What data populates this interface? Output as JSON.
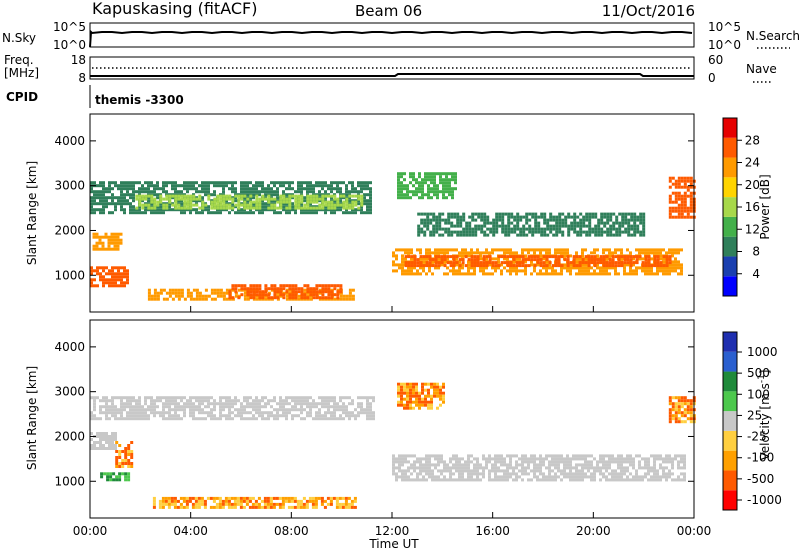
{
  "header": {
    "station": "Kapuskasing (fitACF)",
    "beam": "Beam 06",
    "date": "11/Oct/2016"
  },
  "colors": {
    "power": [
      "#0000ff",
      "#1a3fb0",
      "#2f7f5a",
      "#43b04a",
      "#a7d84a",
      "#ffd400",
      "#ff9a00",
      "#ff5a00",
      "#e60000"
    ],
    "velocity": [
      "#ff0000",
      "#ff5a00",
      "#ffa000",
      "#ffcf40",
      "#c8c8c8",
      "#4cc84c",
      "#1f8a3a",
      "#2a5fcf",
      "#1f2fb0"
    ],
    "velocity_ground": "#c8c8c8"
  },
  "chart_data": [
    {
      "type": "line",
      "name_label": "N.Sky",
      "right_label": "N.Search",
      "left_ticks": [
        "10^5",
        "10^0"
      ],
      "right_ticks": [
        "10^5",
        "10^0"
      ],
      "note": ""
    },
    {
      "type": "line",
      "name_label_1": "Freq.",
      "name_label_2": "[MHz]",
      "right_label": "Nave",
      "left_ticks": [
        "18",
        "8"
      ],
      "right_ticks": [
        "60",
        "0"
      ]
    },
    {
      "type": "table",
      "name_label": "CPID",
      "value": "themis -3300"
    },
    {
      "type": "heatmap",
      "ylabel": "Slant Range [km]",
      "y_ticks": [
        "4000",
        "3000",
        "2000",
        "1000"
      ],
      "y_values": [
        4000,
        3000,
        2000,
        1000
      ],
      "ylim": [
        180,
        4600
      ],
      "xlim": [
        0,
        24
      ],
      "colorbar_label": "Power [dB]",
      "colorbar_ticks": [
        "28",
        "24",
        "20",
        "16",
        "12",
        "8",
        "4"
      ],
      "colorbar_values": [
        28,
        24,
        20,
        16,
        12,
        8,
        4
      ],
      "colorbar_range": [
        0,
        32
      ],
      "features": [
        {
          "x0": 0.0,
          "x1": 1.5,
          "y0": 780,
          "y1": 1200,
          "level": 28
        },
        {
          "x0": 0.1,
          "x1": 1.2,
          "y0": 1600,
          "y1": 1950,
          "level": 24
        },
        {
          "x0": 0.0,
          "x1": 11.2,
          "y0": 2400,
          "y1": 3100,
          "level": 8
        },
        {
          "x0": 1.8,
          "x1": 10.8,
          "y0": 2500,
          "y1": 2800,
          "level": 14
        },
        {
          "x0": 2.3,
          "x1": 10.5,
          "y0": 450,
          "y1": 700,
          "level": 22
        },
        {
          "x0": 5.5,
          "x1": 10.0,
          "y0": 500,
          "y1": 800,
          "level": 26
        },
        {
          "x0": 12.0,
          "x1": 23.5,
          "y0": 1050,
          "y1": 1600,
          "level": 24
        },
        {
          "x0": 12.5,
          "x1": 23.0,
          "y0": 1200,
          "y1": 1450,
          "level": 28
        },
        {
          "x0": 13.0,
          "x1": 22.0,
          "y0": 1900,
          "y1": 2400,
          "level": 6
        },
        {
          "x0": 12.2,
          "x1": 14.5,
          "y0": 2700,
          "y1": 3300,
          "level": 10
        },
        {
          "x0": 23.0,
          "x1": 24.0,
          "y0": 2300,
          "y1": 3200,
          "level": 26
        }
      ]
    },
    {
      "type": "heatmap",
      "xlabel": "Time UT",
      "ylabel": "Slant Range [km]",
      "x_ticks": [
        "00:00",
        "04:00",
        "08:00",
        "12:00",
        "16:00",
        "20:00",
        "00:00"
      ],
      "x_values": [
        0,
        4,
        8,
        12,
        16,
        20,
        24
      ],
      "y_ticks": [
        "4000",
        "3000",
        "2000",
        "1000"
      ],
      "y_values": [
        4000,
        3000,
        2000,
        1000
      ],
      "ylim": [
        180,
        4600
      ],
      "xlim": [
        0,
        24
      ],
      "colorbar_label": "Velocity [m s^-1]",
      "colorbar_ticks": [
        "1000",
        "500",
        "100",
        "25",
        "-25",
        "-100",
        "-500",
        "-1000"
      ],
      "colorbar_values": [
        1000,
        500,
        100,
        25,
        -25,
        -100,
        -500,
        -1000
      ],
      "features": [
        {
          "x0": 0.0,
          "x1": 11.3,
          "y0": 2400,
          "y1": 2900,
          "level": "ground"
        },
        {
          "x0": 0.0,
          "x1": 1.0,
          "y0": 1700,
          "y1": 2100,
          "level": "ground"
        },
        {
          "x0": 12.0,
          "x1": 23.6,
          "y0": 1050,
          "y1": 1600,
          "level": "ground"
        },
        {
          "x0": 0.4,
          "x1": 1.5,
          "y0": 1050,
          "y1": 1200,
          "level": "positive"
        },
        {
          "x0": 1.0,
          "x1": 1.6,
          "y0": 1300,
          "y1": 1900,
          "level": "negative"
        },
        {
          "x0": 2.5,
          "x1": 10.5,
          "y0": 400,
          "y1": 650,
          "level": "negative"
        },
        {
          "x0": 12.2,
          "x1": 14.0,
          "y0": 2600,
          "y1": 3200,
          "level": "negative"
        },
        {
          "x0": 23.0,
          "x1": 24.0,
          "y0": 2300,
          "y1": 2900,
          "level": "negative"
        }
      ]
    }
  ]
}
